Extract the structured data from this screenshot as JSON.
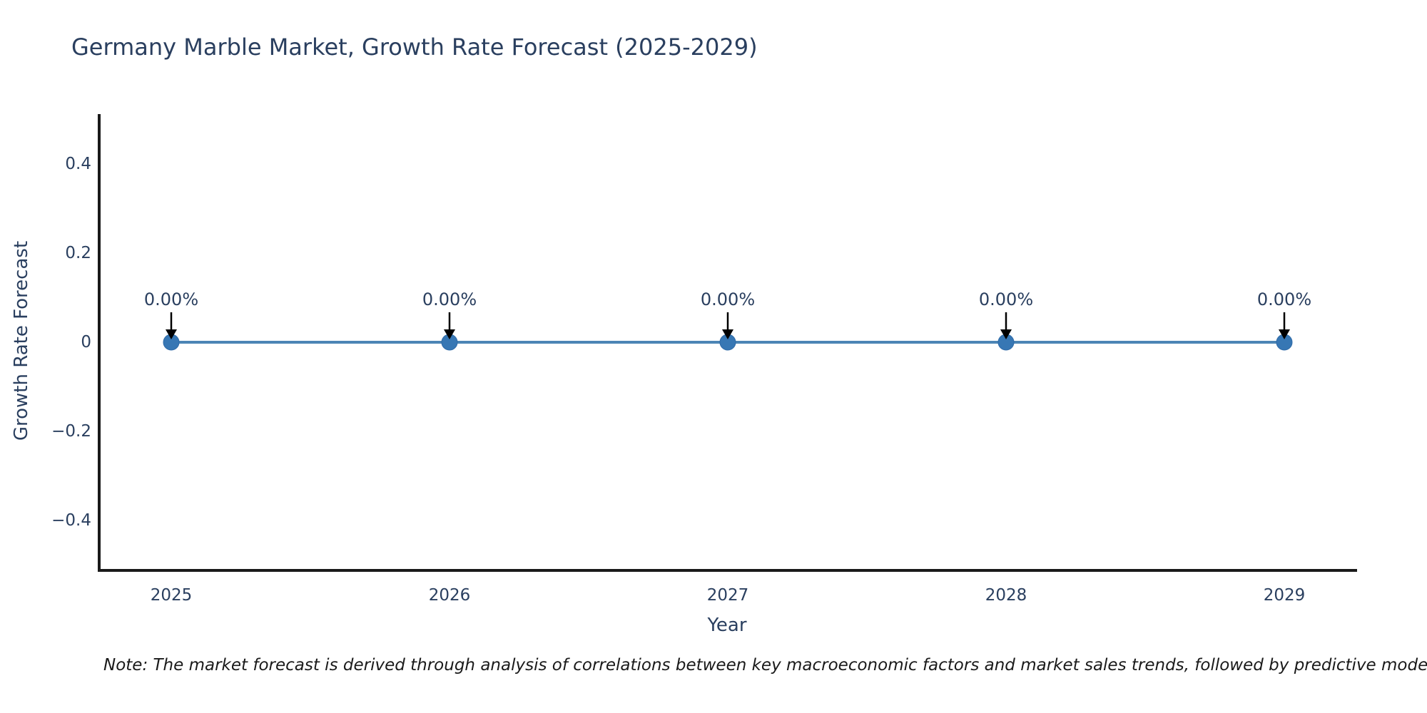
{
  "title": "Germany Marble Market, Growth Rate Forecast (2025-2029)",
  "note": "Note: The market forecast is derived through analysis of correlations between key macroeconomic factors and market sales trends, followed by predictive modeling to project future sales.",
  "chart_data": {
    "type": "line",
    "title": "Germany Marble Market, Growth Rate Forecast (2025-2029)",
    "xlabel": "Year",
    "ylabel": "Growth Rate Forecast",
    "x": [
      2025,
      2026,
      2027,
      2028,
      2029
    ],
    "categories": [
      "2025",
      "2026",
      "2027",
      "2028",
      "2029"
    ],
    "series": [
      {
        "name": "Growth Rate Forecast",
        "values": [
          0,
          0,
          0,
          0,
          0
        ]
      }
    ],
    "point_labels": [
      "0.00%",
      "0.00%",
      "0.00%",
      "0.00%",
      "0.00%"
    ],
    "y_ticks": [
      0.4,
      0.2,
      0,
      -0.2,
      -0.4
    ],
    "y_tick_labels": [
      "0.4",
      "0.2",
      "0",
      "−0.2",
      "−0.4"
    ],
    "ylim": [
      -0.66,
      0.66
    ],
    "grid": false,
    "legend_position": "none",
    "annotation_arrows": true,
    "colors": {
      "line": "#4c85b5",
      "marker": "#3777b4",
      "marker_edge": "#2f6ba8",
      "arrow": "#000000",
      "text": "#2a3f5f",
      "axis": "#1a1a1a",
      "note_text": "#1a1a1a",
      "background": "#ffffff"
    }
  }
}
